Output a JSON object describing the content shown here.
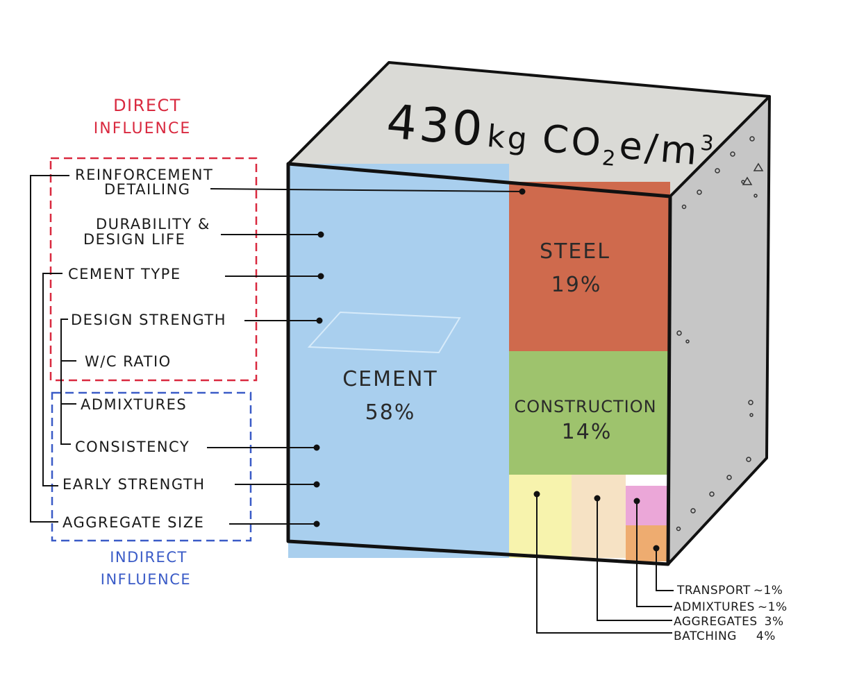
{
  "title": {
    "value": "430",
    "unit_kg": "kg",
    "unit_co": "CO",
    "unit_sub": "2",
    "unit_rest": "e/m",
    "unit_sup": "3"
  },
  "groups": {
    "direct": [
      "DIRECT",
      "INFLUENCE"
    ],
    "indirect": [
      "INDIRECT",
      "INFLUENCE"
    ]
  },
  "factors": [
    [
      "REINFORCEMENT",
      "DETAILING"
    ],
    [
      "DURABILITY &",
      "DESIGN LIFE"
    ],
    [
      "CEMENT TYPE"
    ],
    [
      "DESIGN STRENGTH"
    ],
    [
      "W/C RATIO"
    ],
    [
      "ADMIXTURES"
    ],
    [
      "CONSISTENCY"
    ],
    [
      "EARLY STRENGTH"
    ],
    [
      "AGGREGATE SIZE"
    ]
  ],
  "segments": {
    "cement": {
      "name": "CEMENT",
      "pct": "58%",
      "value": 58
    },
    "steel": {
      "name": "STEEL",
      "pct": "19%",
      "value": 19
    },
    "construction": {
      "name": "CONSTRUCTION",
      "pct": "14%",
      "value": 14
    },
    "batching": {
      "name": "BATCHING",
      "pct": "4%",
      "value": 4
    },
    "aggregates": {
      "name": "AGGREGATES",
      "pct": "3%",
      "value": 3
    },
    "admixtures": {
      "name": "ADMIXTURES",
      "pct": "~1%",
      "value": 1
    },
    "transport": {
      "name": "TRANSPORT",
      "pct": "~1%",
      "value": 1
    }
  },
  "colors": {
    "cement": "#a9cfee",
    "steel": "#cf6a4d",
    "construction": "#9ec36d",
    "batching": "#f7f3ad",
    "aggregates": "#f6e2c4",
    "admixtures": "#eba7d8",
    "transport": "#eeac70",
    "top_face": "#dadad6",
    "side_face": "#c6c6c6",
    "direct_box": "#d9293f",
    "indirect_box": "#3a5bc7"
  }
}
